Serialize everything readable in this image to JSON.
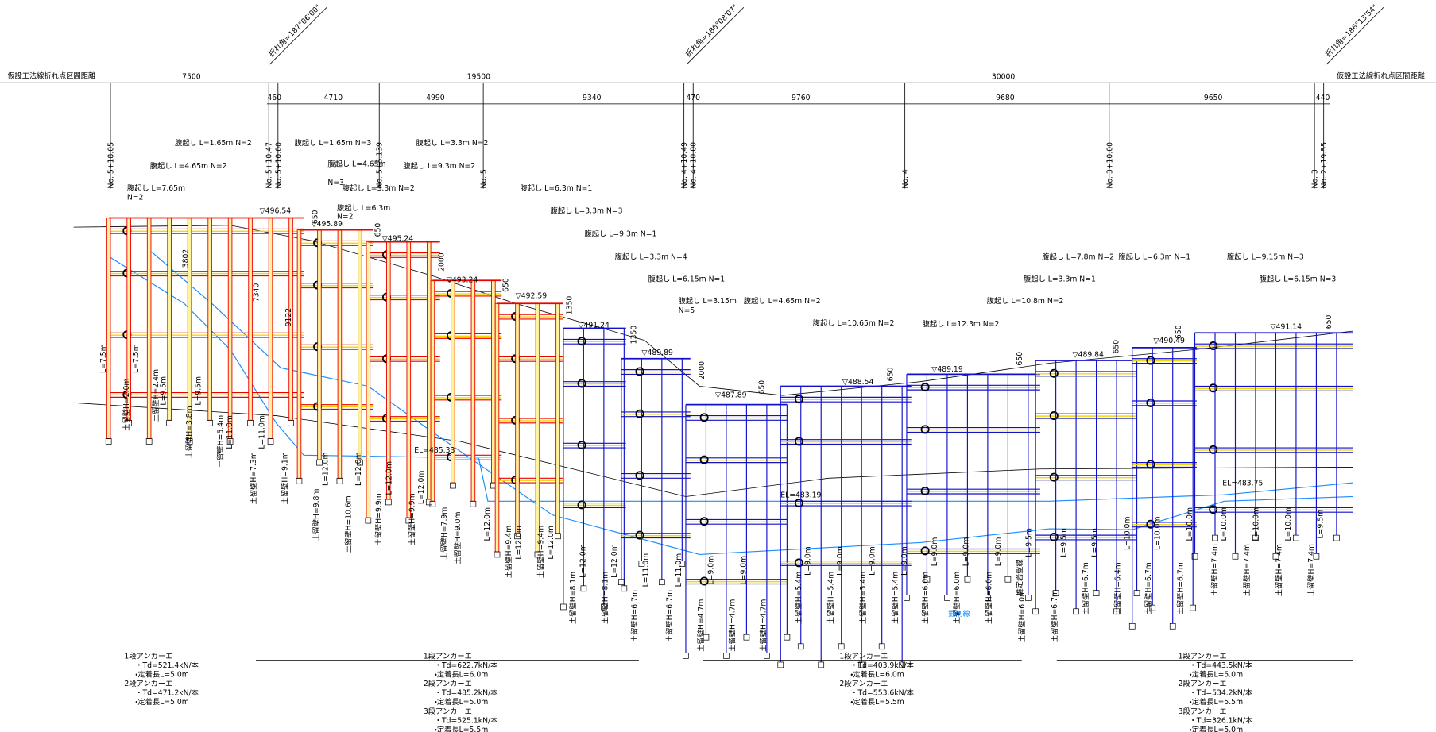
{
  "header": {
    "left_label": "仮設工法線折れ点区間距離",
    "right_label": "仮設工法線折れ点区間距離"
  },
  "bend_angles": [
    "折れ角=187°06'00\"",
    "折れ角=186°08'07\"",
    "折れ角=186°13'54\""
  ],
  "spans": [
    "7500",
    "19500",
    "30000"
  ],
  "sub_spans": [
    "460",
    "4710",
    "4990",
    "9340",
    "470",
    "9760",
    "9680",
    "9650",
    "440"
  ],
  "stations": [
    "No. 5+18.05",
    "No. 5+10.47",
    "No. 5+10.00",
    "No. 5+5.139",
    "No. 5",
    "No. 4+10.49",
    "No. 4+10.00",
    "No. 4",
    "No. 3+10.00",
    "No. 3",
    "No. 2+19.55"
  ],
  "walers": [
    "腹起し L=1.65m N=2",
    "腹起し L=4.65m N=2",
    "腹起し L=7.65m",
    "N=2",
    "腹起し L=1.65m N=3",
    "腹起し L=4.65m",
    "N=3",
    "腹起し L=3.3m N=2",
    "腹起し L=9.3m N=2",
    "腹起し L=3.3m N=2",
    "腹起し L=6.3m",
    "N=2",
    "腹起し L=6.3m N=1",
    "腹起し L=3.3m N=3",
    "腹起し L=9.3m N=1",
    "腹起し L=3.3m N=4",
    "腹起し L=6.15m N=1",
    "腹起し L=3.15m",
    "N=5",
    "腹起し L=4.65m N=2",
    "腹起し L=10.65m N=2",
    "腹起し L=12.3m N=2",
    "腹起し L=10.8m N=2",
    "腹起し L=3.3m N=1",
    "腹起し L=7.8m N=2",
    "腹起し L=6.3m N=1",
    "腹起し L=9.15m N=3",
    "腹起し L=6.15m N=3"
  ],
  "elevations": [
    "▽496.54",
    "▽495.89",
    "▽495.24",
    "▽493.24",
    "▽492.59",
    "▽491.24",
    "▽489.89",
    "▽487.89",
    "▽488.54",
    "▽489.19",
    "▽489.84",
    "▽490.49",
    "▽491.14",
    "EL=485.33",
    "EL=483.19",
    "EL=483.75"
  ],
  "dimensions": [
    "650",
    "3802",
    "7340",
    "9122",
    "650",
    "2000",
    "650",
    "1350",
    "1350",
    "2000",
    "650",
    "650",
    "650",
    "650",
    "650",
    "650"
  ],
  "wall_labels": [
    "土留壁H=2.0m",
    "土留壁H=2.4m",
    "L=9.5m",
    "L=7.5m",
    "L=7.5m",
    "土留壁H=3.8m",
    "L=9.5m",
    "土留壁H=5.4m",
    "L=11.0m",
    "土留壁H=7.3m",
    "L=11.0m",
    "土留壁H=9.1m",
    "土留壁H=9.8m",
    "L=12.0m",
    "土留壁H=10.6m",
    "L=12.0m",
    "土留壁H=9.9m",
    "L=12.0m",
    "土留壁H=9.9m",
    "L=12.0m",
    "土留壁H=7.9m",
    "土留壁H=9.0m",
    "L=12.0m",
    "土留壁H=9.4m",
    "L=12.0m",
    "土留壁H=9.4m",
    "L=12.0m",
    "土留壁H=8.1m",
    "L=12.0m",
    "土留壁H=8.1m",
    "L=12.0m",
    "土留壁H=6.7m",
    "L=11.0m",
    "土留壁H=6.7m",
    "L=11.0m",
    "土留壁H=4.7m",
    "L=9.0m",
    "土留壁H=4.7m",
    "L=9.0m",
    "土留壁H=4.7m",
    "土留壁H=5.4m",
    "L=9.0m",
    "土留壁H=5.4m",
    "L=9.0m",
    "土留壁H=5.4m",
    "L=9.0m",
    "土留壁H=5.4m",
    "L=9.0m",
    "土留壁H=6.0m",
    "L=9.0m",
    "土留壁H=6.0m",
    "L=9.0m",
    "土留壁H=6.0m",
    "L=9.0m",
    "L=9.5m",
    "土留壁H=6.0m",
    "土留壁H=6.7m",
    "L=9.5m",
    "土留壁H=6.7m",
    "L=9.5m",
    "土留壁H=6.4m",
    "L=10.0m",
    "土留壁H=6.7m",
    "L=10.0m",
    "土留壁H=6.7m",
    "L=10.0m",
    "土留壁H=7.4m",
    "L=10.0m",
    "土留壁H=7.4m",
    "L=10.0m",
    "土留壁H=7.4m",
    "L=10.0m",
    "土留壁H=7.4m",
    "L=9.5m"
  ],
  "notes": {
    "rock_line": "推定岩盤線",
    "excavation_line": "掘削線"
  },
  "anchor_notes": [
    [
      "1段アンカーエ",
      "・Td=521.4kN/本",
      "・定着長L=5.0m",
      "2段アンカーエ",
      "・Td=471.2kN/本",
      "・定着長L=5.0m"
    ],
    [
      "1段アンカーエ",
      "・Td=622.7kN/本",
      "・定着長L=6.0m",
      "2段アンカーエ",
      "・Td=485.2kN/本",
      "・定着長L=5.0m",
      "3段アンカーエ",
      "・Td=525.1kN/本",
      "・定着長L=5.5m"
    ],
    [
      "1段アンカーエ",
      "・Td=403.9kN/本",
      "・定着長L=6.0m",
      "2段アンカーエ",
      "・Td=553.6kN/本",
      "・定着長L=5.5m"
    ],
    [
      "1段アンカーエ",
      "・Td=443.5kN/本",
      "・定着長L=5.0m",
      "2段アンカーエ",
      "・Td=534.2kN/本",
      "・定着長L=5.5m",
      "3段アンカーエ",
      "・Td=326.1kN/本",
      "・定着長L=5.0m"
    ]
  ]
}
